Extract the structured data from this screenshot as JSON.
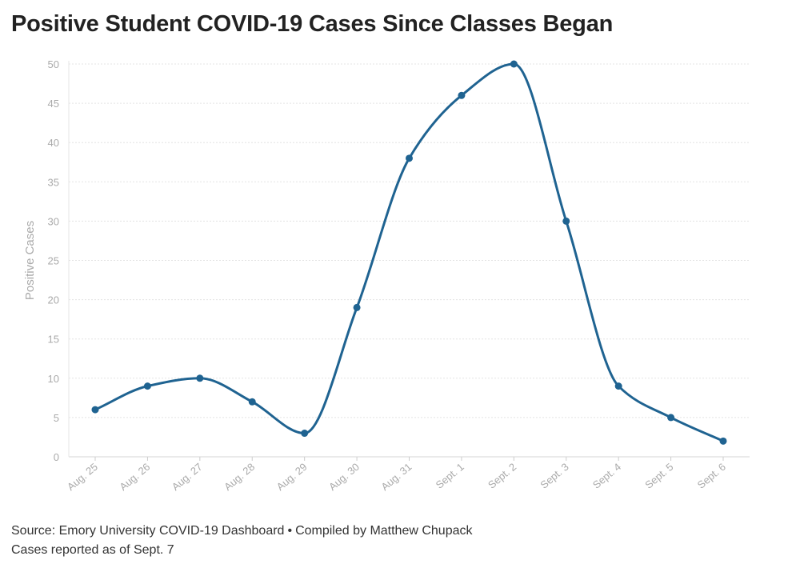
{
  "chart_data": {
    "type": "line",
    "title": "Positive Student COVID-19 Cases Since Classes Began",
    "xlabel": "",
    "ylabel": "Positive Cases",
    "categories": [
      "Aug. 25",
      "Aug. 26",
      "Aug. 27",
      "Aug. 28",
      "Aug. 29",
      "Aug. 30",
      "Aug. 31",
      "Sept. 1",
      "Sept. 2",
      "Sept. 3",
      "Sept. 4",
      "Sept. 5",
      "Sept. 6"
    ],
    "series": [
      {
        "name": "Positive Cases",
        "values": [
          6,
          9,
          10,
          7,
          3,
          19,
          38,
          46,
          50,
          30,
          9,
          5,
          2
        ]
      }
    ],
    "ylim": [
      0,
      50
    ],
    "yticks": [
      0,
      5,
      10,
      15,
      20,
      25,
      30,
      35,
      40,
      45,
      50
    ],
    "grid": true,
    "colors": {
      "line": "#1f6391",
      "grid": "#e3e3e3",
      "tick_label": "#aaaaaa"
    }
  },
  "footer": {
    "source": "Source: Emory University COVID-19 Dashboard",
    "separator": "•",
    "credit": "Compiled by Matthew Chupack",
    "note": "Cases reported as of Sept. 7"
  }
}
